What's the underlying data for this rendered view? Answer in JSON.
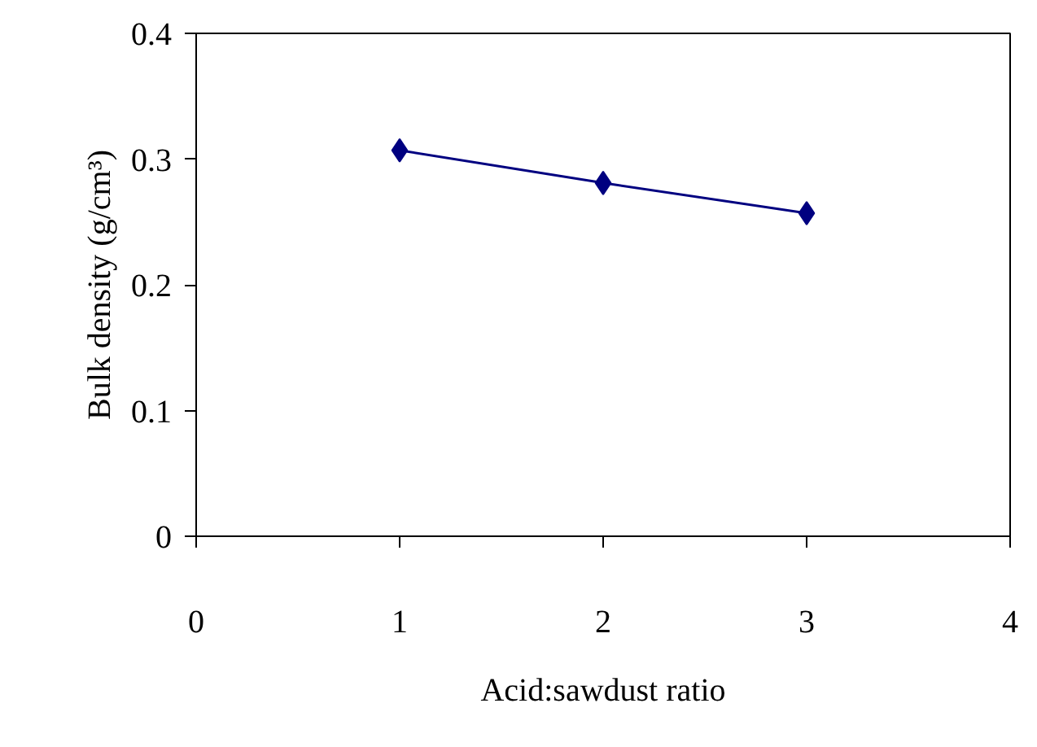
{
  "chart_data": {
    "type": "line",
    "xlabel": "Acid:sawdust ratio",
    "ylabel": "Bulk density (g/cm³)",
    "x": [
      1,
      2,
      3
    ],
    "series": [
      {
        "color": "#000080",
        "values": [
          0.307,
          0.281,
          0.257
        ]
      }
    ],
    "xlim": [
      0,
      4
    ],
    "xticks": [
      0,
      1,
      2,
      3,
      4
    ],
    "ylim": [
      0,
      0.4
    ],
    "yticks": [
      0,
      0.1,
      0.2,
      0.3,
      0.4
    ],
    "marker": "diamond",
    "line_style": "solid",
    "grid": false
  }
}
